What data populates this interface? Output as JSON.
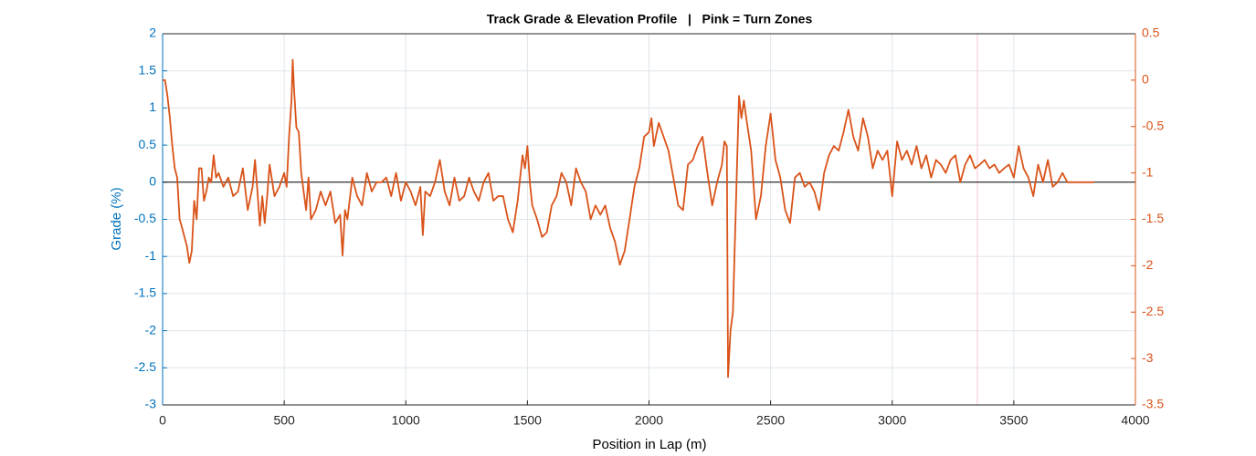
{
  "chart_data": {
    "type": "line",
    "title": "Track Grade & Elevation Profile   |   Pink = Turn Zones",
    "x_label": "Position in Lap (m)",
    "y_label": "Grade (%)",
    "y_color": "#0072BD",
    "y2_color": "#D95319",
    "grid": true,
    "hline": 0,
    "turn_zones": [
      3350
    ],
    "turn_zone_color": "#f7c6d6",
    "xlim": [
      0,
      4000
    ],
    "xticks": [
      0,
      500,
      1000,
      1500,
      2000,
      2500,
      3000,
      3500,
      4000
    ],
    "ylim": [
      -3,
      2
    ],
    "yticks": [
      -3,
      -2.5,
      -2,
      -1.5,
      -1,
      -0.5,
      0,
      0.5,
      1,
      1.5,
      2
    ],
    "y2lim": [
      -3.5,
      0.5
    ],
    "y2ticks": [
      -3.5,
      -3,
      -2.5,
      -2,
      -1.5,
      -1,
      -0.5,
      0,
      0.5
    ],
    "x": [
      0,
      10,
      20,
      30,
      40,
      50,
      60,
      70,
      80,
      90,
      100,
      110,
      120,
      130,
      140,
      150,
      160,
      170,
      180,
      190,
      200,
      210,
      220,
      230,
      250,
      270,
      290,
      310,
      330,
      350,
      370,
      380,
      390,
      400,
      410,
      420,
      430,
      440,
      460,
      480,
      500,
      510,
      520,
      530,
      535,
      540,
      550,
      560,
      570,
      580,
      590,
      600,
      610,
      630,
      650,
      670,
      690,
      710,
      730,
      740,
      750,
      760,
      780,
      800,
      820,
      840,
      860,
      880,
      900,
      920,
      940,
      960,
      980,
      1000,
      1020,
      1040,
      1060,
      1070,
      1080,
      1100,
      1120,
      1140,
      1160,
      1180,
      1200,
      1220,
      1240,
      1260,
      1280,
      1300,
      1320,
      1340,
      1360,
      1380,
      1400,
      1420,
      1440,
      1460,
      1480,
      1490,
      1500,
      1510,
      1520,
      1540,
      1560,
      1580,
      1600,
      1620,
      1640,
      1660,
      1680,
      1700,
      1720,
      1740,
      1760,
      1780,
      1800,
      1820,
      1840,
      1860,
      1880,
      1900,
      1920,
      1940,
      1960,
      1980,
      2000,
      2010,
      2020,
      2040,
      2060,
      2080,
      2100,
      2120,
      2140,
      2160,
      2180,
      2200,
      2220,
      2240,
      2260,
      2280,
      2300,
      2310,
      2320,
      2325,
      2335,
      2345,
      2360,
      2370,
      2380,
      2390,
      2400,
      2420,
      2440,
      2460,
      2480,
      2500,
      2520,
      2540,
      2560,
      2580,
      2600,
      2620,
      2640,
      2660,
      2680,
      2700,
      2720,
      2740,
      2760,
      2780,
      2800,
      2820,
      2840,
      2860,
      2880,
      2900,
      2920,
      2940,
      2960,
      2980,
      3000,
      3020,
      3040,
      3060,
      3080,
      3100,
      3120,
      3140,
      3160,
      3180,
      3200,
      3220,
      3240,
      3260,
      3280,
      3300,
      3320,
      3340,
      3360,
      3380,
      3400,
      3420,
      3440,
      3460,
      3480,
      3500,
      3520,
      3540,
      3560,
      3580,
      3600,
      3620,
      3640,
      3660,
      3680,
      3700,
      3720,
      3740,
      3830
    ],
    "series": [
      {
        "color": "#D95319",
        "axis": "y2",
        "values": [
          0,
          0,
          -0.17,
          -0.41,
          -0.71,
          -0.95,
          -1.05,
          -1.5,
          -1.59,
          -1.69,
          -1.79,
          -1.97,
          -1.84,
          -1.3,
          -1.5,
          -0.95,
          -0.95,
          -1.3,
          -1.2,
          -1.05,
          -1.1,
          -0.81,
          -1.05,
          -1.0,
          -1.15,
          -1.05,
          -1.25,
          -1.2,
          -0.95,
          -1.4,
          -1.15,
          -0.86,
          -1.2,
          -1.57,
          -1.25,
          -1.54,
          -1.25,
          -0.91,
          -1.25,
          -1.15,
          -1.0,
          -1.15,
          -0.61,
          -0.22,
          0.22,
          -0.07,
          -0.51,
          -0.56,
          -1.0,
          -1.2,
          -1.4,
          -1.05,
          -1.5,
          -1.4,
          -1.2,
          -1.35,
          -1.2,
          -1.54,
          -1.45,
          -1.89,
          -1.4,
          -1.5,
          -1.05,
          -1.25,
          -1.35,
          -1.0,
          -1.2,
          -1.1,
          -1.1,
          -1.05,
          -1.25,
          -1.0,
          -1.3,
          -1.1,
          -1.2,
          -1.35,
          -1.15,
          -1.67,
          -1.2,
          -1.25,
          -1.1,
          -0.86,
          -1.2,
          -1.35,
          -1.05,
          -1.3,
          -1.25,
          -1.05,
          -1.2,
          -1.3,
          -1.1,
          -1.0,
          -1.3,
          -1.25,
          -1.25,
          -1.5,
          -1.64,
          -1.3,
          -0.81,
          -0.95,
          -0.71,
          -1.1,
          -1.35,
          -1.5,
          -1.69,
          -1.64,
          -1.35,
          -1.25,
          -1.0,
          -1.1,
          -1.35,
          -0.95,
          -1.1,
          -1.2,
          -1.5,
          -1.35,
          -1.45,
          -1.35,
          -1.59,
          -1.74,
          -1.99,
          -1.84,
          -1.5,
          -1.15,
          -0.95,
          -0.61,
          -0.56,
          -0.41,
          -0.71,
          -0.46,
          -0.61,
          -0.76,
          -1.05,
          -1.35,
          -1.4,
          -0.91,
          -0.86,
          -0.71,
          -0.61,
          -1.0,
          -1.35,
          -1.1,
          -0.91,
          -0.66,
          -0.71,
          -3.2,
          -2.7,
          -2.5,
          -1.1,
          -0.17,
          -0.41,
          -0.22,
          -0.41,
          -0.76,
          -1.5,
          -1.25,
          -0.71,
          -0.36,
          -0.86,
          -1.05,
          -1.4,
          -1.54,
          -1.05,
          -1.0,
          -1.15,
          -1.1,
          -1.2,
          -1.4,
          -1.0,
          -0.81,
          -0.71,
          -0.76,
          -0.56,
          -0.32,
          -0.61,
          -0.76,
          -0.41,
          -0.61,
          -0.95,
          -0.76,
          -0.86,
          -0.76,
          -1.25,
          -0.66,
          -0.86,
          -0.76,
          -0.91,
          -0.71,
          -0.95,
          -0.81,
          -1.05,
          -0.86,
          -0.91,
          -1.0,
          -0.86,
          -0.81,
          -1.1,
          -0.91,
          -0.81,
          -0.95,
          -0.91,
          -0.86,
          -0.95,
          -0.91,
          -1.0,
          -0.95,
          -0.91,
          -1.05,
          -0.71,
          -0.95,
          -1.05,
          -1.25,
          -0.91,
          -1.1,
          -0.86,
          -1.15,
          -1.1,
          -1.0,
          -1.1,
          -1.1,
          -1.1
        ]
      }
    ]
  }
}
